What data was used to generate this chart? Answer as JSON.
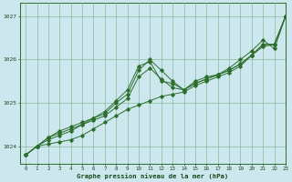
{
  "title": "Graphe pression niveau de la mer (hPa)",
  "bg_color": "#cce8ee",
  "grid_color": "#88bb99",
  "line_color": "#2d6e2d",
  "xlim": [
    -0.5,
    23
  ],
  "ylim": [
    1023.6,
    1027.3
  ],
  "yticks": [
    1024,
    1025,
    1026,
    1027
  ],
  "xticks": [
    0,
    1,
    2,
    3,
    4,
    5,
    6,
    7,
    8,
    9,
    10,
    11,
    12,
    13,
    14,
    15,
    16,
    17,
    18,
    19,
    20,
    21,
    22,
    23
  ],
  "line1": [
    1023.8,
    1024.0,
    1024.05,
    1024.1,
    1024.15,
    1024.25,
    1024.4,
    1024.55,
    1024.7,
    1024.85,
    1024.95,
    1025.05,
    1025.15,
    1025.2,
    1025.25,
    1025.4,
    1025.5,
    1025.6,
    1025.7,
    1025.85,
    1026.1,
    1026.3,
    1026.35,
    1027.0
  ],
  "line2": [
    1023.8,
    1024.0,
    1024.15,
    1024.25,
    1024.35,
    1024.5,
    1024.6,
    1024.7,
    1024.9,
    1025.1,
    1025.6,
    1025.8,
    1025.55,
    1025.35,
    1025.3,
    1025.45,
    1025.55,
    1025.65,
    1025.75,
    1025.9,
    1026.1,
    1026.35,
    1026.35,
    1027.0
  ],
  "line3": [
    1023.8,
    1024.0,
    1024.2,
    1024.3,
    1024.4,
    1024.5,
    1024.65,
    1024.75,
    1025.0,
    1025.2,
    1025.75,
    1026.0,
    1025.75,
    1025.5,
    1025.3,
    1025.5,
    1025.6,
    1025.65,
    1025.8,
    1026.0,
    1026.2,
    1026.45,
    1026.25,
    1027.0
  ],
  "line4": [
    1023.8,
    1024.0,
    1024.2,
    1024.35,
    1024.45,
    1024.55,
    1024.65,
    1024.8,
    1025.05,
    1025.3,
    1025.85,
    1025.95,
    1025.5,
    1025.45,
    1025.3,
    1025.45,
    1025.55,
    1025.65,
    1025.75,
    1025.9,
    1026.1,
    1026.35,
    1026.35,
    1027.0
  ]
}
